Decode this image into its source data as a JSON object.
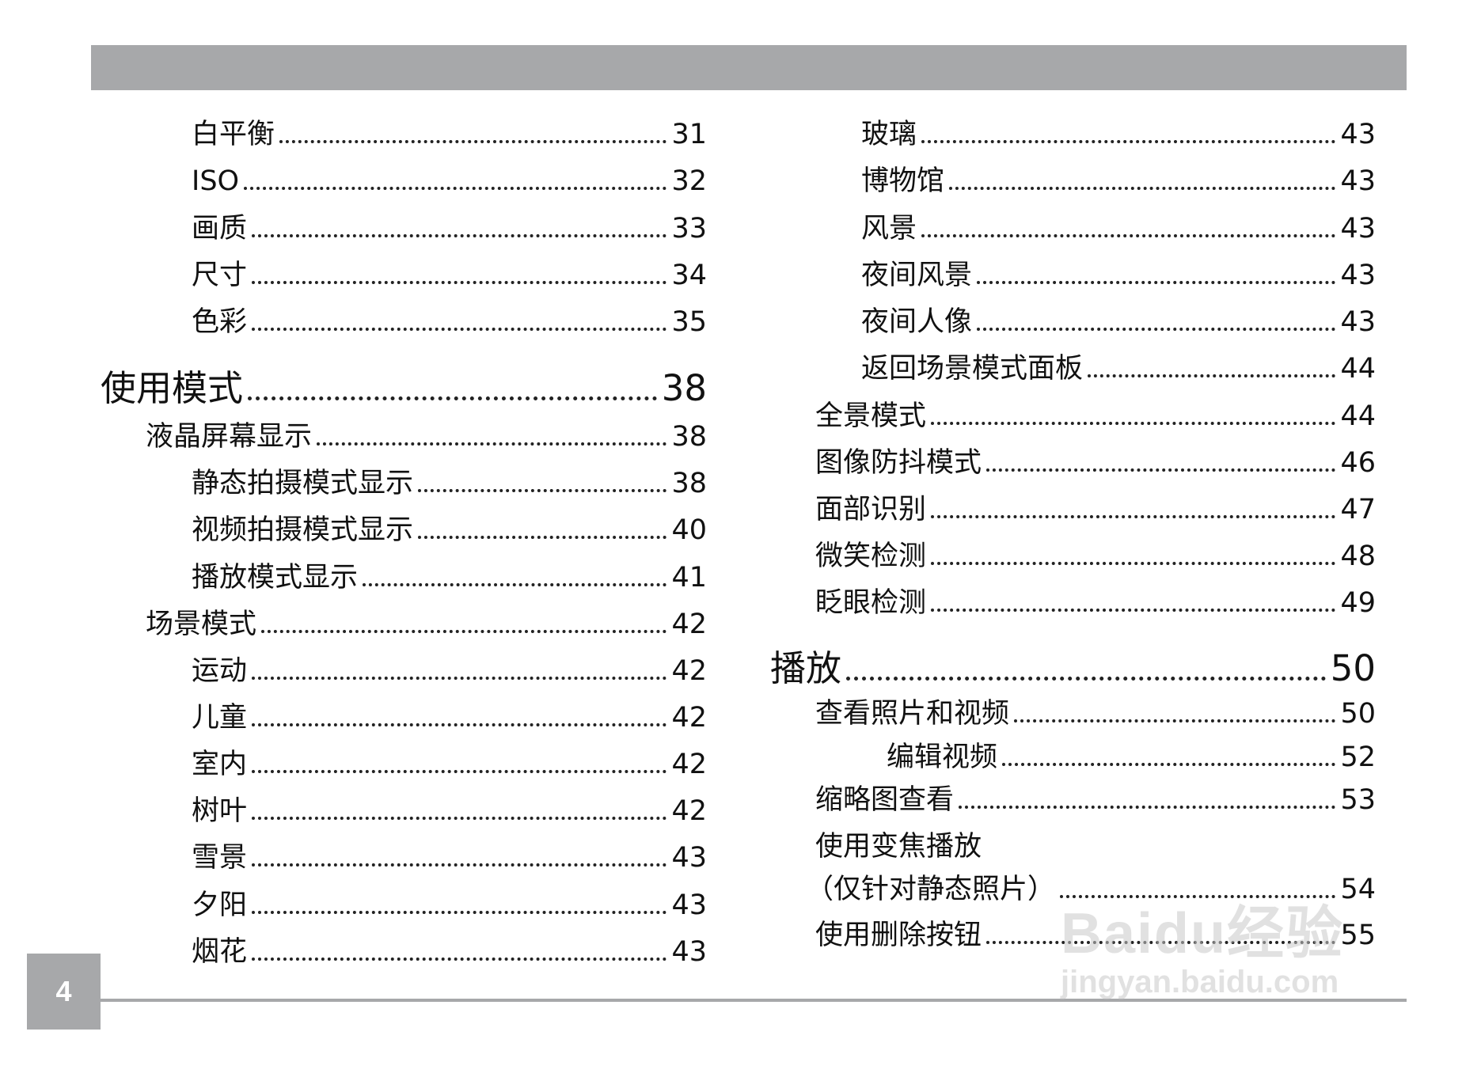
{
  "page_number": "4",
  "watermark": {
    "line1": "Baidu经验",
    "line2": "jingyan.baidu.com"
  },
  "left_column": [
    {
      "label": "白平衡",
      "page": "31",
      "level": 2
    },
    {
      "label": "ISO",
      "page": "32",
      "level": 2
    },
    {
      "label": "画质",
      "page": "33",
      "level": 2
    },
    {
      "label": "尺寸",
      "page": "34",
      "level": 2
    },
    {
      "label": "色彩",
      "page": "35",
      "level": 2
    },
    {
      "label": "使用模式",
      "page": "38",
      "level": 0
    },
    {
      "label": "液晶屏幕显示",
      "page": "38",
      "level": 1
    },
    {
      "label": "静态拍摄模式显示",
      "page": "38",
      "level": 2
    },
    {
      "label": "视频拍摄模式显示",
      "page": "40",
      "level": 2
    },
    {
      "label": "播放模式显示",
      "page": "41",
      "level": 2
    },
    {
      "label": "场景模式",
      "page": "42",
      "level": 1
    },
    {
      "label": "运动",
      "page": "42",
      "level": 2
    },
    {
      "label": "儿童",
      "page": "42",
      "level": 2
    },
    {
      "label": "室内",
      "page": "42",
      "level": 2
    },
    {
      "label": "树叶",
      "page": "42",
      "level": 2
    },
    {
      "label": "雪景",
      "page": "43",
      "level": 2
    },
    {
      "label": "夕阳",
      "page": "43",
      "level": 2
    },
    {
      "label": "烟花",
      "page": "43",
      "level": 2
    }
  ],
  "right_column": [
    {
      "label": "玻璃",
      "page": "43",
      "level": 2
    },
    {
      "label": "博物馆",
      "page": "43",
      "level": 2
    },
    {
      "label": "风景",
      "page": "43",
      "level": 2
    },
    {
      "label": "夜间风景",
      "page": "43",
      "level": 2
    },
    {
      "label": "夜间人像",
      "page": "43",
      "level": 2
    },
    {
      "label": "返回场景模式面板",
      "page": "44",
      "level": 2
    },
    {
      "label": "全景模式",
      "page": "44",
      "level": 1
    },
    {
      "label": "图像防抖模式",
      "page": "46",
      "level": 1
    },
    {
      "label": "面部识别",
      "page": "47",
      "level": 1
    },
    {
      "label": "微笑检测",
      "page": "48",
      "level": 1
    },
    {
      "label": "眨眼检测",
      "page": "49",
      "level": 1
    },
    {
      "label": "播放",
      "page": "50",
      "level": 0
    },
    {
      "label": "查看照片和视频",
      "page": "50",
      "level": 1
    },
    {
      "label": "编辑视频",
      "page": "52",
      "level": 3
    },
    {
      "label": "缩略图查看",
      "page": "53",
      "level": 1
    },
    {
      "label": "使用变焦播放",
      "page": "",
      "level": 1
    },
    {
      "label": "（仅针对静态照片）",
      "page": "54",
      "level": 1
    },
    {
      "label": "使用删除按钮",
      "page": "55",
      "level": 1
    }
  ]
}
